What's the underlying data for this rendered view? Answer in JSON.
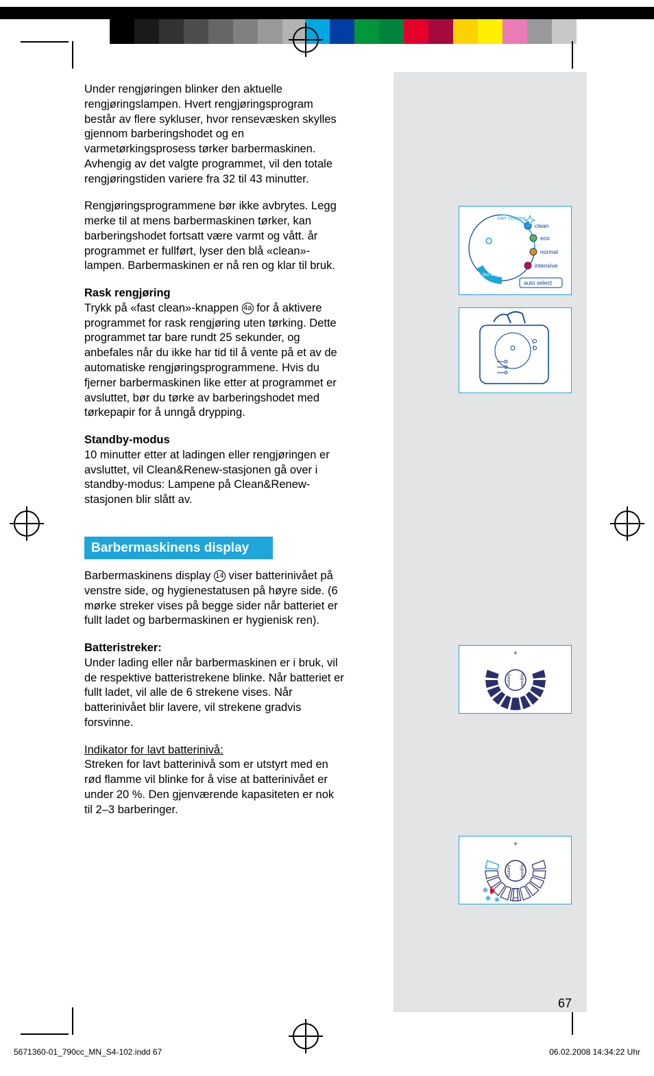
{
  "colorbar": {
    "bw": [
      "#000000",
      "#1a1a1a",
      "#333333",
      "#4d4d4d",
      "#666666",
      "#808080",
      "#999999",
      "#b3b3b3",
      "#cccccc",
      "#e6e6e6",
      "#ffffff"
    ],
    "colors": [
      "#00a7e1",
      "#003da5",
      "#009639",
      "#00843d",
      "#e4002b",
      "#a6093d",
      "#ffd100",
      "#fff000",
      "#ea7bb4",
      "#97999b",
      "#c8c9c7"
    ]
  },
  "text": {
    "p1": "Under rengjøringen blinker den aktuelle rengjøringslampen. Hvert rengjøringsprogram består av flere sykluser, hvor rensevæsken skylles gjennom barberingshodet og en varmetørkingsprosess tørker barbermaskinen. Avhengig av det valgte programmet, vil den totale rengjøringstiden variere fra 32 til 43 minutter.",
    "p2": "Rengjøringsprogrammene bør ikke avbrytes. Legg merke til at mens barbermaskinen tørker, kan barberingshodet fortsatt være varmt og vått. år programmet er fullført, lyser den blå «clean»-lampen. Barbermaskinen er nå ren og klar til bruk.",
    "h1": "Rask rengjøring",
    "p3a": "Trykk på «fast clean»-knappen ",
    "p3b": " for å aktivere programmet for rask rengjøring uten tørking. Dette programmet tar bare rundt 25 sekunder, og anbefales når du ikke har tid til å vente på et av de automatiske rengjøringsprogrammene. Hvis du fjerner barbermaskinen like etter at programmet er avsluttet, bør du tørke av barberingshodet med tørkepapir for å unngå drypping.",
    "circ1": "4a",
    "h2": "Standby-modus",
    "p4": "10 minutter etter at ladingen eller rengjøringen er avsluttet, vil Clean&Renew-stasjonen gå over i standby-modus: Lampene på Clean&Renew-stasjonen blir slått av.",
    "sec": "Barbermaskinens display",
    "p5a": "Barbermaskinens display ",
    "circ2": "14",
    "p5b": " viser batterinivået på venstre side, og hygienestatusen på høyre side. (6 mørke streker vises på begge sider når batteriet er fullt ladet og barbermaskinen er hygienisk ren).",
    "h3": "Batteristreker:",
    "p6": "Under lading eller når barbermaskinen er i bruk, vil de respektive batteristrekene blinke. Når batteriet er fullt ladet, vil alle de 6 strekene vises. Når batterinivået blir lavere, vil strekene gradvis forsvinne.",
    "u1": "Indikator for lavt batterinivå:",
    "p7": "Streken for lavt batterinivå som er utstyrt med en rød flamme vil blinke for å vise at batterinivået er under 20 %. Den gjenværende kapasiteten er nok til 2–3 barberinger."
  },
  "fig1": {
    "labels": [
      "clean",
      "eco",
      "normal",
      "intensive",
      "auto select",
      "start cleaning",
      "fast clean"
    ],
    "led_colors": [
      "#1ea5dc",
      "#6cb33f",
      "#f28c00",
      "#e4002b"
    ],
    "stroke": "#1ea5dc",
    "text_color": "#003da5"
  },
  "fig3": {
    "left_label": "battery",
    "right_label": "hygiene",
    "plus": "+",
    "minus": "−",
    "seg_color": "#2a2f6b",
    "stroke": "#1ea5dc"
  },
  "fig4": {
    "left_label": "battery",
    "right_label": "hygiene",
    "plus": "+",
    "minus": "−",
    "seg_color": "#2a2f6b",
    "stroke": "#1ea5dc",
    "flame_color": "#e4002b"
  },
  "page": "67",
  "footer": {
    "left": "5671360-01_790cc_MN_S4-102.indd   67",
    "right": "06.02.2008   14:34:22 Uhr"
  }
}
